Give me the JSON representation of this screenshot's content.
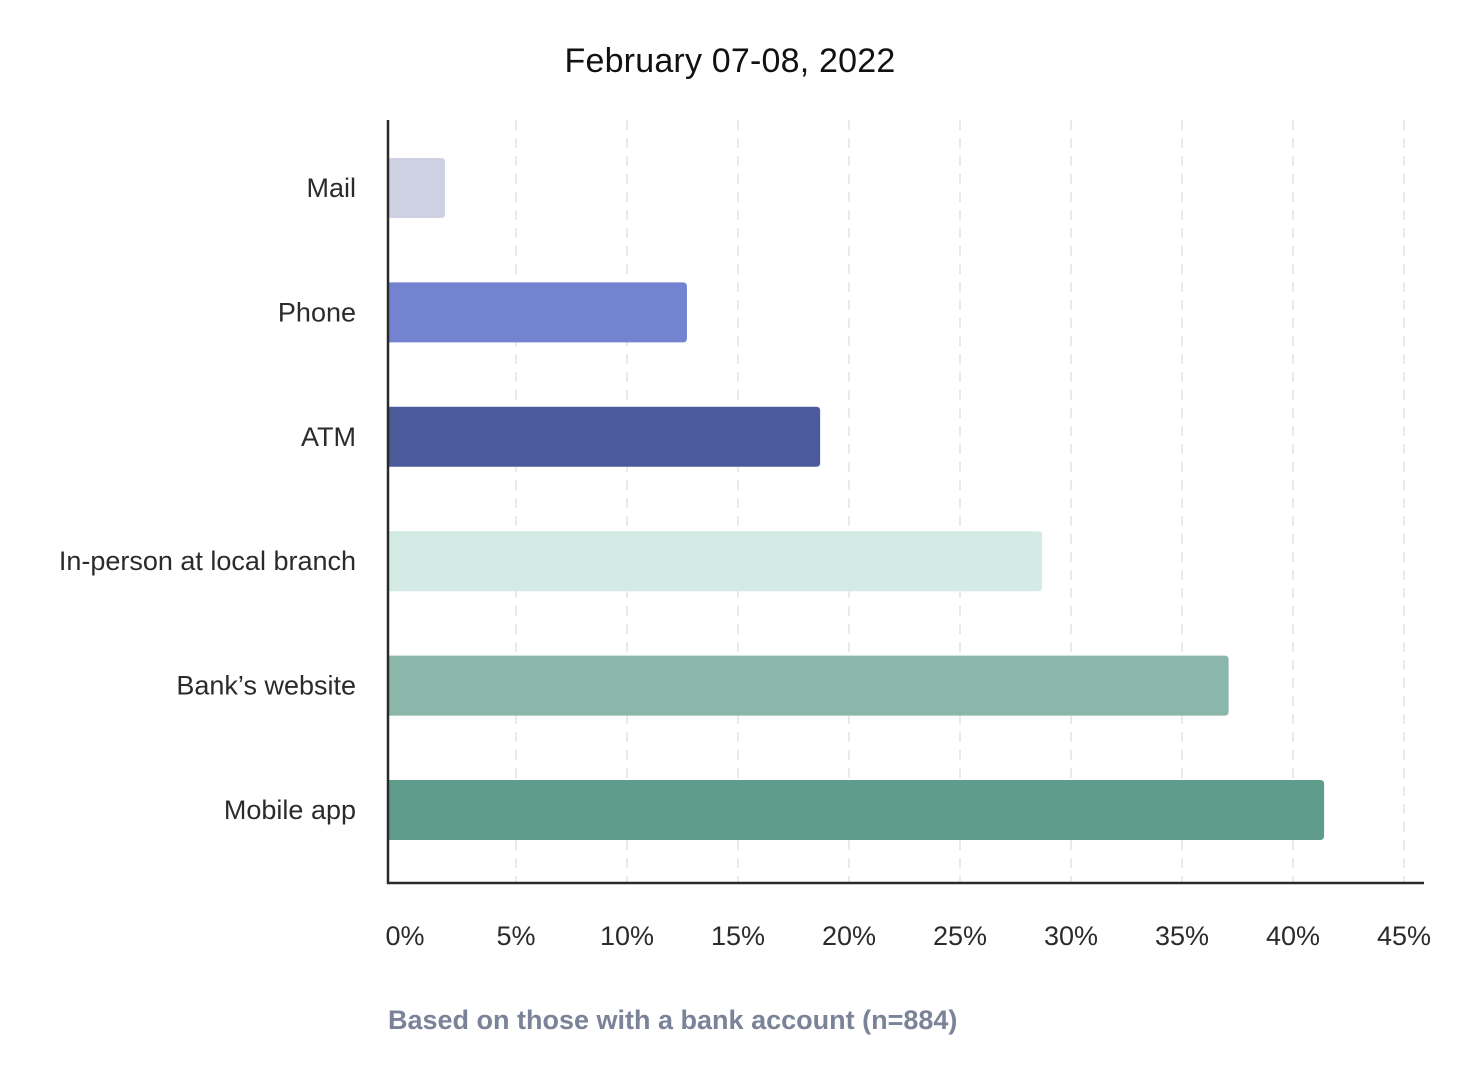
{
  "chart_data": {
    "type": "bar",
    "orientation": "horizontal",
    "title": "February 07-08, 2022",
    "categories": [
      "Mail",
      "Phone",
      "ATM",
      "In-person at local branch",
      "Bank’s website",
      "Mobile app"
    ],
    "values": [
      1.8,
      12.7,
      18.7,
      28.7,
      37.1,
      41.4
    ],
    "colors": [
      "#cdd1e2",
      "#7483cf",
      "#4a5a9b",
      "#d4eae4",
      "#8ab7aa",
      "#609c8b"
    ],
    "xlim": [
      0,
      45
    ],
    "x_ticks": [
      0,
      5,
      10,
      15,
      20,
      25,
      30,
      35,
      40,
      45
    ],
    "x_tick_labels": [
      "0%",
      "5%",
      "10%",
      "15%",
      "20%",
      "25%",
      "30%",
      "35%",
      "40%",
      "45%"
    ],
    "xlabel": "",
    "ylabel": "",
    "grid": "vertical dashed",
    "legend": "none",
    "note": "Based on those with a bank account (n=884)"
  }
}
